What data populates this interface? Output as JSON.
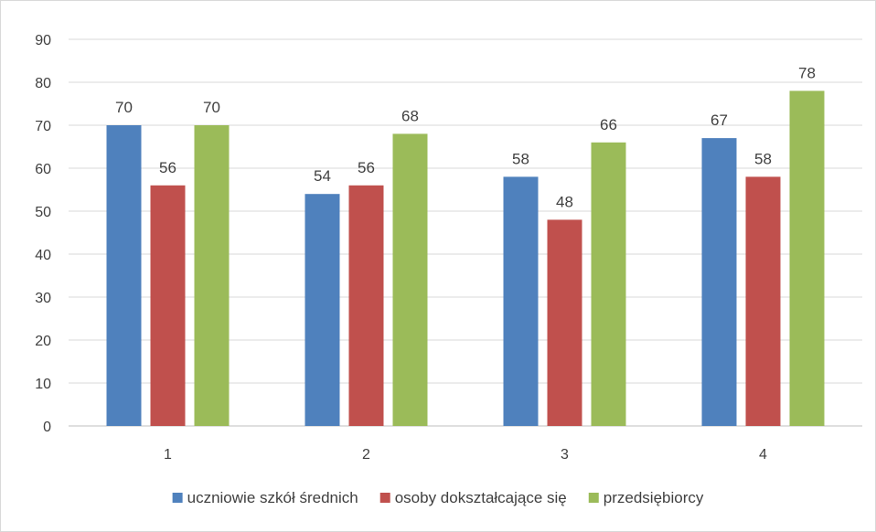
{
  "chart_data": {
    "type": "bar",
    "categories": [
      "1",
      "2",
      "3",
      "4"
    ],
    "series": [
      {
        "name": "uczniowie szkół średnich",
        "color": "#4f81bd",
        "values": [
          70,
          54,
          58,
          67
        ]
      },
      {
        "name": "osoby dokształcające się",
        "color": "#c0504d",
        "values": [
          56,
          56,
          48,
          58
        ]
      },
      {
        "name": "przedsiębiorcy",
        "color": "#9bbb59",
        "values": [
          70,
          68,
          66,
          78
        ]
      }
    ],
    "y_ticks": [
      "0",
      "10",
      "20",
      "30",
      "40",
      "50",
      "60",
      "70",
      "80",
      "90"
    ],
    "ylim": [
      0,
      90
    ],
    "grid": true,
    "data_labels": true,
    "legend_position": "bottom",
    "title": "",
    "xlabel": "",
    "ylabel": ""
  }
}
